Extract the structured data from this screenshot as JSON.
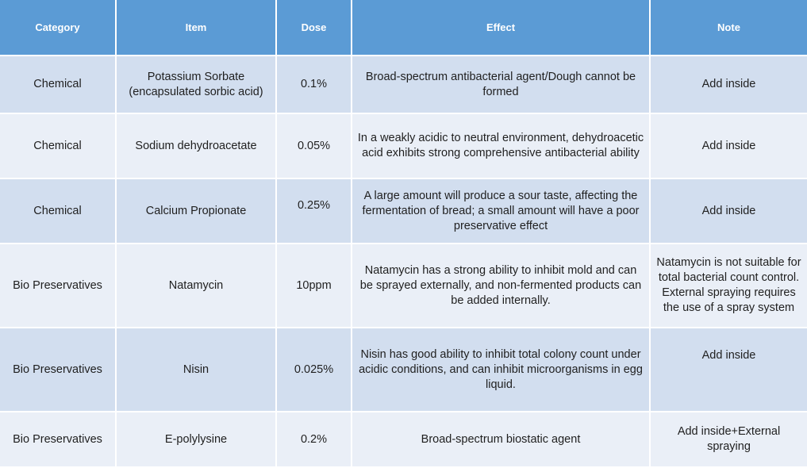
{
  "table": {
    "headers": [
      "Category",
      "Item",
      "Dose",
      "Effect",
      "Note"
    ],
    "rows": [
      {
        "category": "Chemical",
        "item": "Potassium Sorbate (encapsulated sorbic acid)",
        "dose": "0.1%",
        "effect": "Broad-spectrum antibacterial agent/Dough cannot be formed",
        "note": "Add inside"
      },
      {
        "category": "Chemical",
        "item": "Sodium dehydroacetate",
        "dose": "0.05%",
        "effect": "In a weakly acidic to neutral environment, dehydroacetic acid exhibits strong comprehensive antibacterial ability",
        "note": "Add inside"
      },
      {
        "category": "Chemical",
        "item": "Calcium Propionate",
        "dose": "0.25%",
        "effect": "A large amount will produce a sour taste, affecting the fermentation of bread; a small amount will have a poor preservative effect",
        "note": "Add inside"
      },
      {
        "category": "Bio Preservatives",
        "item": "Natamycin",
        "dose": "10ppm",
        "effect": "Natamycin has a strong ability to inhibit mold and can be sprayed externally, and non-fermented products can be added internally.",
        "note": "Natamycin is not suitable for total bacterial count control. External spraying requires the use of a spray system"
      },
      {
        "category": "Bio Preservatives",
        "item": "Nisin",
        "dose": "0.025%",
        "effect": "Nisin has good ability to inhibit total colony count under acidic conditions, and can inhibit microorganisms in egg liquid.",
        "note": "Add inside"
      },
      {
        "category": "Bio Preservatives",
        "item": "E-polylysine",
        "dose": "0.2%",
        "effect": "Broad-spectrum biostatic agent",
        "note": "Add inside+External spraying"
      }
    ]
  }
}
